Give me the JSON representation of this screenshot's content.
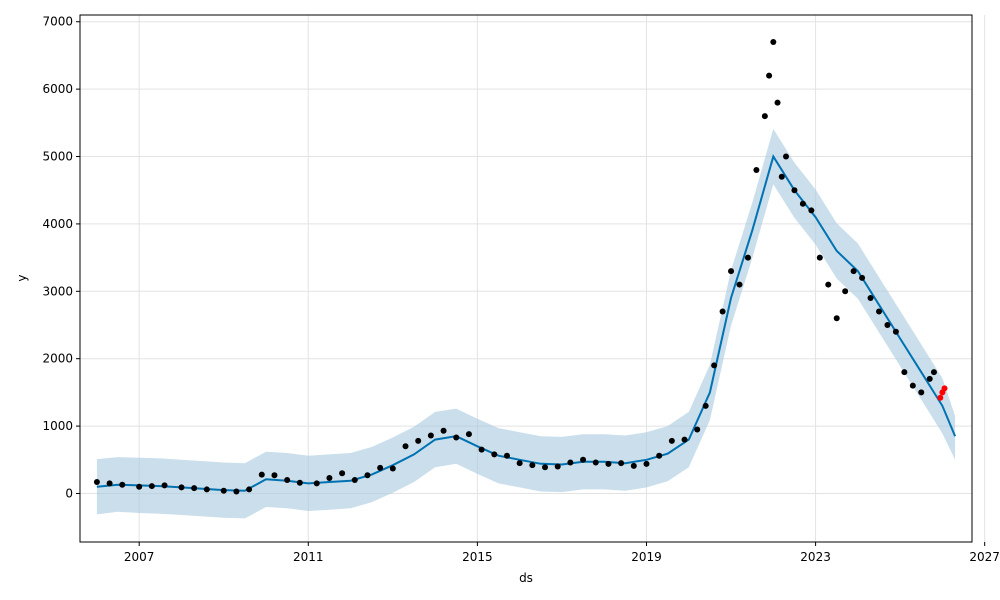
{
  "chart_data": {
    "type": "scatter",
    "title": "",
    "xlabel": "ds",
    "ylabel": "y",
    "xlim": [
      2005.6,
      2026.7
    ],
    "ylim": [
      -720,
      7100
    ],
    "grid": true,
    "x_ticks": [
      2007,
      2011,
      2015,
      2019,
      2023,
      2027
    ],
    "x_tick_labels": [
      "2007",
      "2011",
      "2015",
      "2019",
      "2023",
      "2027"
    ],
    "y_ticks": [
      0,
      1000,
      2000,
      3000,
      4000,
      5000,
      6000,
      7000
    ],
    "y_tick_labels": [
      "0",
      "1000",
      "2000",
      "3000",
      "4000",
      "5000",
      "6000",
      "7000"
    ],
    "series": [
      {
        "role": "forecast_uncertainty_band",
        "color": "#a6c8e0",
        "x": [
          2006.0,
          2006.5,
          2007.0,
          2007.5,
          2008.0,
          2008.5,
          2009.0,
          2009.5,
          2010.0,
          2010.5,
          2011.0,
          2011.5,
          2012.0,
          2012.5,
          2013.0,
          2013.5,
          2014.0,
          2014.5,
          2015.0,
          2015.5,
          2016.0,
          2016.5,
          2017.0,
          2017.5,
          2018.0,
          2018.5,
          2019.0,
          2019.5,
          2020.0,
          2020.5,
          2021.0,
          2021.5,
          2022.0,
          2022.5,
          2023.0,
          2023.5,
          2024.0,
          2024.5,
          2025.0,
          2025.5,
          2026.0,
          2026.3
        ],
        "yhat": [
          100,
          130,
          120,
          110,
          90,
          70,
          50,
          40,
          210,
          190,
          150,
          170,
          190,
          280,
          420,
          580,
          800,
          850,
          700,
          560,
          500,
          440,
          430,
          470,
          470,
          450,
          500,
          590,
          800,
          1500,
          2900,
          3900,
          5000,
          4500,
          4100,
          3600,
          3300,
          2800,
          2300,
          1800,
          1300,
          850
        ],
        "lower": [
          -310,
          -270,
          -290,
          -300,
          -320,
          -340,
          -360,
          -370,
          -200,
          -220,
          -260,
          -240,
          -220,
          -130,
          10,
          170,
          390,
          440,
          290,
          150,
          90,
          30,
          20,
          60,
          60,
          40,
          90,
          180,
          390,
          1090,
          2490,
          3490,
          4590,
          4090,
          3690,
          3190,
          2890,
          2390,
          1890,
          1390,
          890,
          500
        ],
        "upper": [
          510,
          540,
          530,
          520,
          500,
          480,
          460,
          450,
          620,
          600,
          560,
          580,
          600,
          690,
          830,
          990,
          1210,
          1260,
          1110,
          970,
          910,
          850,
          840,
          880,
          880,
          860,
          910,
          1000,
          1210,
          1910,
          3310,
          4310,
          5410,
          4910,
          4510,
          4010,
          3710,
          3210,
          2710,
          2210,
          1710,
          1150
        ]
      },
      {
        "role": "yhat_line",
        "color": "#0072B2"
      },
      {
        "role": "observed_points",
        "color": "#000000",
        "x": [
          2006.0,
          2006.3,
          2006.6,
          2007.0,
          2007.3,
          2007.6,
          2008.0,
          2008.3,
          2008.6,
          2009.0,
          2009.3,
          2009.6,
          2009.9,
          2010.2,
          2010.5,
          2010.8,
          2011.2,
          2011.5,
          2011.8,
          2012.1,
          2012.4,
          2012.7,
          2013.0,
          2013.3,
          2013.6,
          2013.9,
          2014.2,
          2014.5,
          2014.8,
          2015.1,
          2015.4,
          2015.7,
          2016.0,
          2016.3,
          2016.6,
          2016.9,
          2017.2,
          2017.5,
          2017.8,
          2018.1,
          2018.4,
          2018.7,
          2019.0,
          2019.3,
          2019.6,
          2019.9,
          2020.2,
          2020.4,
          2020.6,
          2020.8,
          2021.0,
          2021.2,
          2021.4,
          2021.6,
          2021.8,
          2021.9,
          2022.0,
          2022.1,
          2022.2,
          2022.3,
          2022.5,
          2022.7,
          2022.9,
          2023.1,
          2023.3,
          2023.5,
          2023.7,
          2023.9,
          2024.1,
          2024.3,
          2024.5,
          2024.7,
          2024.9,
          2025.1,
          2025.3,
          2025.5,
          2025.7,
          2025.8
        ],
        "y": [
          170,
          150,
          130,
          100,
          110,
          120,
          90,
          80,
          60,
          40,
          30,
          60,
          280,
          270,
          200,
          160,
          150,
          230,
          300,
          200,
          270,
          380,
          370,
          700,
          780,
          860,
          930,
          830,
          880,
          650,
          580,
          560,
          450,
          420,
          390,
          400,
          460,
          500,
          460,
          440,
          450,
          410,
          440,
          560,
          780,
          800,
          950,
          1300,
          1900,
          2700,
          3300,
          3100,
          3500,
          4800,
          5600,
          6200,
          6700,
          5800,
          4700,
          5000,
          4500,
          4300,
          4200,
          3500,
          3100,
          2600,
          3000,
          3300,
          3200,
          2900,
          2700,
          2500,
          2400,
          1800,
          1600,
          1500,
          1700,
          1800
        ]
      },
      {
        "role": "highlighted_points",
        "color": "#ff0000",
        "x": [
          2025.95,
          2026.0,
          2026.05
        ],
        "y": [
          1420,
          1500,
          1560
        ]
      }
    ]
  }
}
